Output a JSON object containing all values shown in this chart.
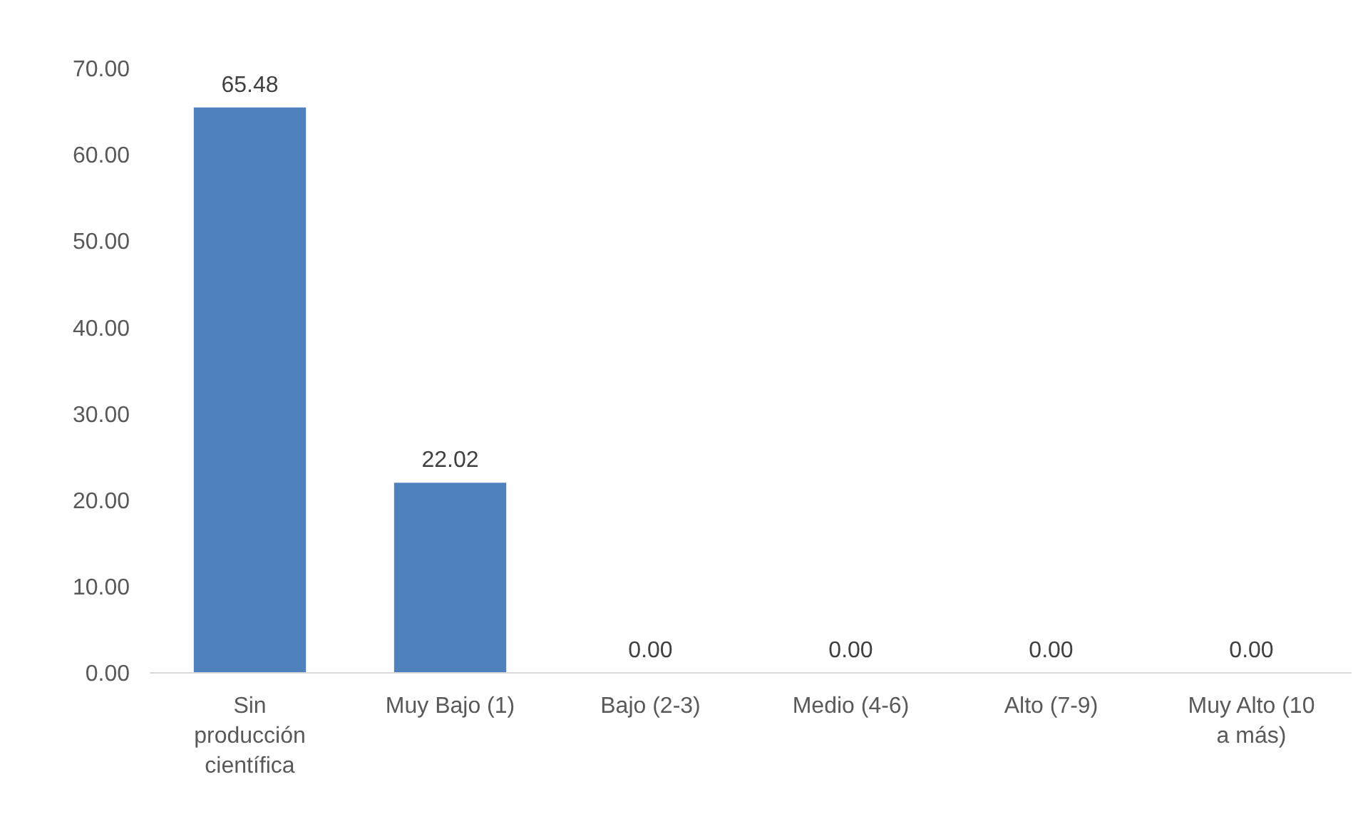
{
  "chart_data": {
    "type": "bar",
    "categories": [
      "Sin producción científica",
      "Muy Bajo (1)",
      "Bajo (2-3)",
      "Medio (4-6)",
      "Alto (7-9)",
      "Muy Alto (10 a más)"
    ],
    "values": [
      65.48,
      22.02,
      0,
      0,
      0,
      0
    ],
    "color": "#4f81bd",
    "value_labels": [
      "65.48",
      "22.02",
      "0.00",
      "0.00",
      "0.00",
      "0.00"
    ],
    "ylim": [
      0,
      70
    ],
    "yticks": [
      {
        "value": 0,
        "label": "0.00"
      },
      {
        "value": 10,
        "label": "10.00"
      },
      {
        "value": 20,
        "label": "20.00"
      },
      {
        "value": 30,
        "label": "30.00"
      },
      {
        "value": 40,
        "label": "40.00"
      },
      {
        "value": 50,
        "label": "50.00"
      },
      {
        "value": 60,
        "label": "60.00"
      },
      {
        "value": 70,
        "label": "70.00"
      }
    ],
    "grid": false
  }
}
